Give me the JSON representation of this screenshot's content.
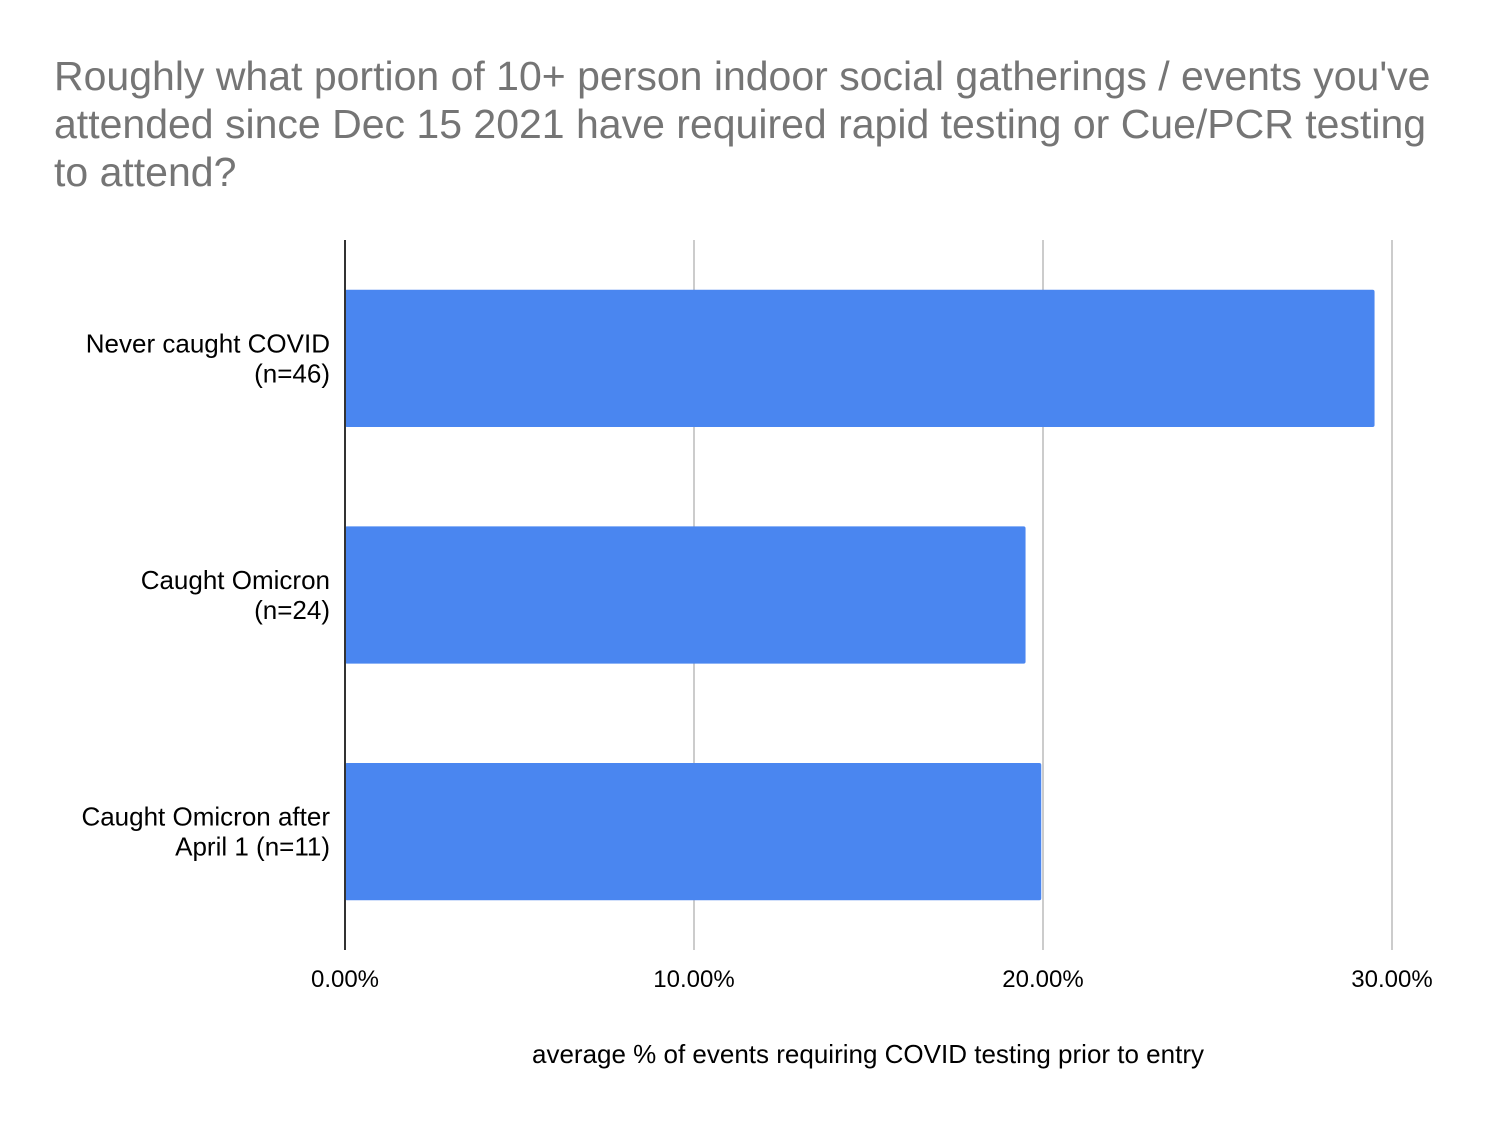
{
  "chart_data": {
    "type": "bar",
    "orientation": "horizontal",
    "title": "Roughly what portion of 10+ person indoor social gatherings / events you've attended since Dec 15 2021 have required rapid testing or Cue/PCR testing to attend?",
    "xlabel": "average % of events requiring COVID testing prior to entry",
    "ylabel": "",
    "categories": [
      [
        "Never caught COVID",
        "(n=46)"
      ],
      [
        "Caught Omicron",
        "(n=24)"
      ],
      [
        "Caught Omicron after",
        "April 1 (n=11)"
      ]
    ],
    "values": [
      29.5,
      19.5,
      19.95
    ],
    "xlim": [
      0,
      30
    ],
    "ticks": [
      0,
      10,
      20,
      30
    ],
    "tick_labels": [
      "0.00%",
      "10.00%",
      "20.00%",
      "30.00%"
    ],
    "grid": true,
    "legend": "none",
    "bar_color": "#4a86f0"
  }
}
